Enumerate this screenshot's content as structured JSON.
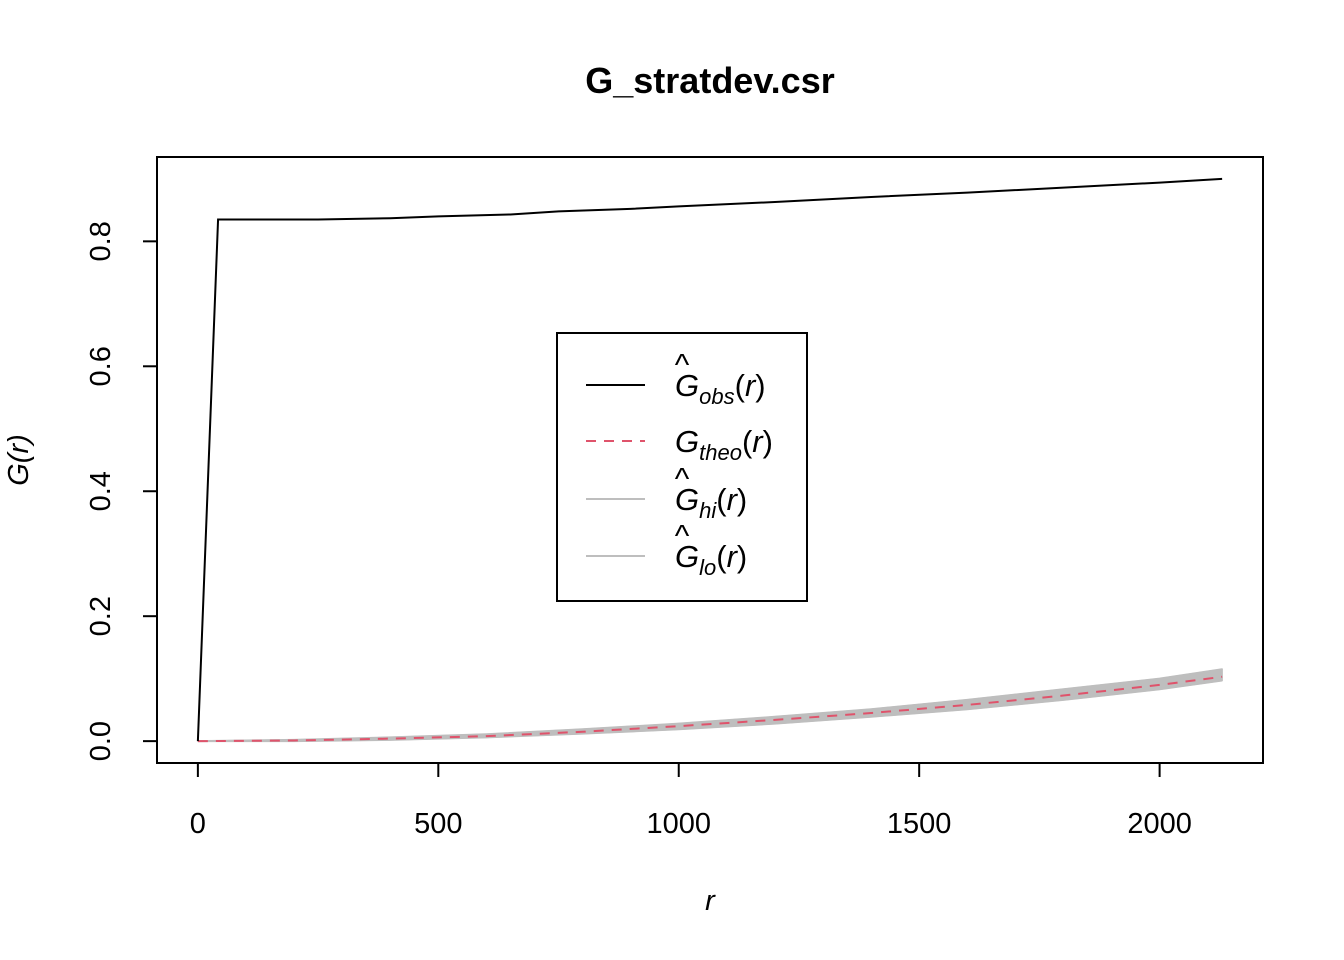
{
  "chart_data": {
    "type": "line",
    "title": "G_stratdev.csr",
    "xlabel": "r",
    "ylabel": "G(r)",
    "xlim": [
      -85,
      2215
    ],
    "ylim": [
      -0.035,
      0.935
    ],
    "xticks": [
      0,
      500,
      1000,
      1500,
      2000
    ],
    "xtick_labels": [
      "0",
      "500",
      "1000",
      "1500",
      "2000"
    ],
    "yticks": [
      0.0,
      0.2,
      0.4,
      0.6,
      0.8
    ],
    "ytick_labels": [
      "0.0",
      "0.2",
      "0.4",
      "0.6",
      "0.8"
    ],
    "grid": false,
    "legend_position": "center",
    "colors": {
      "obs": "#000000",
      "theo": "#DF536B",
      "envelope": "#BEBEBE"
    },
    "series": [
      {
        "name": "obs",
        "legend": {
          "hat": true,
          "main": "G",
          "sub": "obs"
        },
        "style": "solid",
        "x": [
          0,
          42,
          100,
          250,
          400,
          500,
          650,
          750,
          900,
          1000,
          1200,
          1400,
          1600,
          1800,
          2000,
          2130
        ],
        "y": [
          0.0,
          0.835,
          0.835,
          0.835,
          0.837,
          0.84,
          0.843,
          0.848,
          0.852,
          0.856,
          0.863,
          0.871,
          0.878,
          0.886,
          0.894,
          0.9
        ]
      },
      {
        "name": "theo",
        "legend": {
          "hat": false,
          "main": "G",
          "sub": "theo"
        },
        "style": "dashed",
        "x": [
          0,
          200,
          400,
          600,
          800,
          1000,
          1200,
          1400,
          1600,
          1800,
          2000,
          2130
        ],
        "y": [
          0.0,
          0.001,
          0.004,
          0.008,
          0.015,
          0.024,
          0.034,
          0.045,
          0.058,
          0.073,
          0.09,
          0.103
        ]
      },
      {
        "name": "hi",
        "legend": {
          "hat": true,
          "main": "G",
          "sub": "hi"
        },
        "style": "envelope-upper",
        "x": [
          0,
          200,
          400,
          600,
          800,
          1000,
          1200,
          1400,
          1600,
          1800,
          2000,
          2130
        ],
        "y": [
          0.0,
          0.002,
          0.006,
          0.011,
          0.019,
          0.028,
          0.039,
          0.051,
          0.066,
          0.083,
          0.1,
          0.115
        ]
      },
      {
        "name": "lo",
        "legend": {
          "hat": true,
          "main": "G",
          "sub": "lo"
        },
        "style": "envelope-lower",
        "x": [
          0,
          200,
          400,
          600,
          800,
          1000,
          1200,
          1400,
          1600,
          1800,
          2000,
          2130
        ],
        "y": [
          0.0,
          0.0,
          0.002,
          0.006,
          0.012,
          0.019,
          0.028,
          0.039,
          0.051,
          0.066,
          0.083,
          0.097
        ]
      }
    ]
  }
}
